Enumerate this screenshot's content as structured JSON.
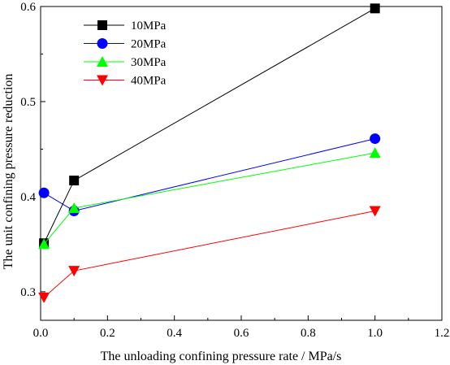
{
  "chart_data": {
    "type": "line",
    "title": "",
    "xlabel": "The unloading confining pressure rate  / MPa/s",
    "ylabel": "The unit confining pressure reduction",
    "xlim": [
      0.0,
      1.2
    ],
    "ylim": [
      0.27,
      0.6
    ],
    "xticks": [
      0.0,
      0.2,
      0.4,
      0.6,
      0.8,
      1.0,
      1.2
    ],
    "xtick_labels": [
      "0.0",
      "0.2",
      "0.4",
      "0.6",
      "0.8",
      "1.0",
      "1.2"
    ],
    "yticks": [
      0.3,
      0.4,
      0.5,
      0.6
    ],
    "ytick_labels": [
      "0.3",
      "0.4",
      "0.5",
      "0.6"
    ],
    "grid": false,
    "legend_position": "top-left",
    "series": [
      {
        "name": "10MPa",
        "color": "#000000",
        "marker": "square",
        "x": [
          0.01,
          0.1,
          1.0
        ],
        "y": [
          0.351,
          0.417,
          0.598
        ]
      },
      {
        "name": "20MPa",
        "color": "#0000ff",
        "marker": "circle",
        "x": [
          0.01,
          0.1,
          1.0
        ],
        "y": [
          0.404,
          0.385,
          0.461
        ]
      },
      {
        "name": "30MPa",
        "color": "#00ff00",
        "marker": "triangle-up",
        "x": [
          0.01,
          0.1,
          1.0
        ],
        "y": [
          0.35,
          0.388,
          0.446
        ]
      },
      {
        "name": "40MPa",
        "color": "#ff0000",
        "marker": "triangle-down",
        "x": [
          0.01,
          0.1,
          1.0
        ],
        "y": [
          0.294,
          0.322,
          0.385
        ]
      }
    ]
  }
}
